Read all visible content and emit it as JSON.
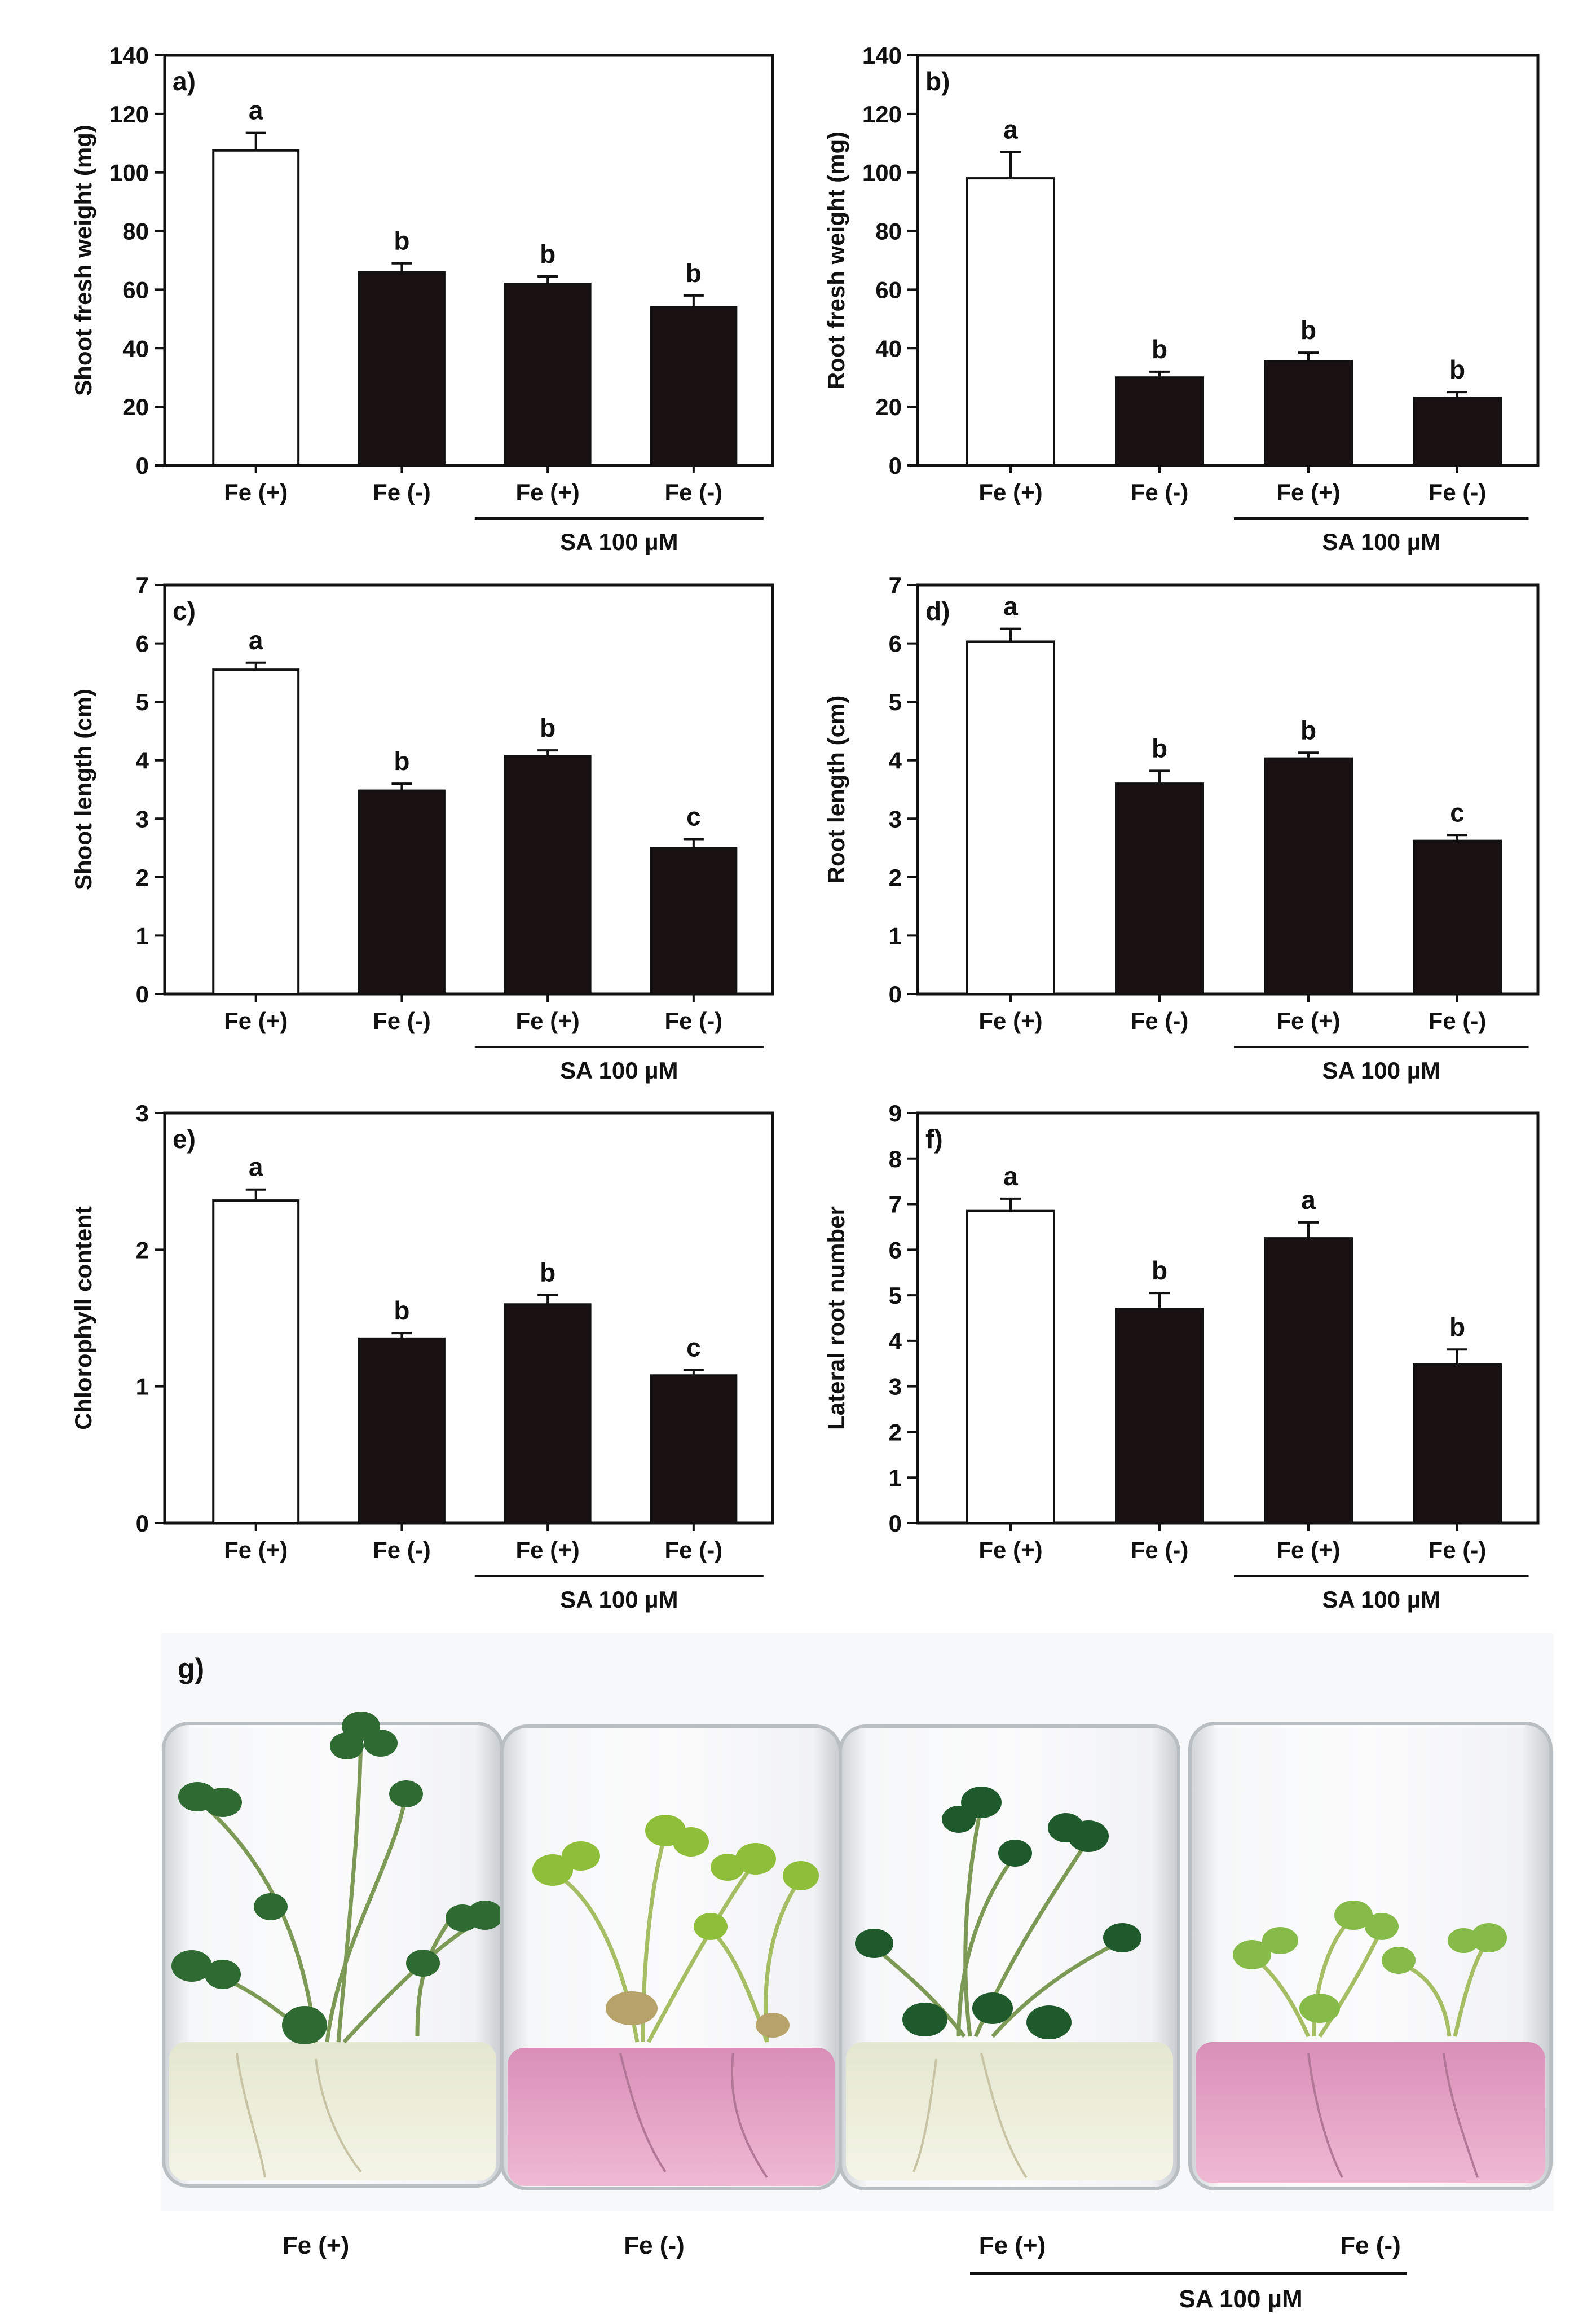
{
  "colors": {
    "control_fill": "#ffffff",
    "treatment_fill": "#1a1212",
    "axis": "#111111",
    "pink_medium": "#e6a3c4",
    "clear_medium": "#eef1da",
    "leaf_green": "#2f6a33"
  },
  "chart_data": [
    {
      "panel": "a)",
      "type": "bar",
      "ylabel": "Shoot fresh weight (mg)",
      "categories": [
        "Fe (+)",
        "Fe (-)",
        "Fe (+)",
        "Fe (-)"
      ],
      "values": [
        107.5,
        66,
        62,
        54
      ],
      "errors": [
        6,
        3,
        2.5,
        4
      ],
      "letters": [
        "a",
        "b",
        "b",
        "b"
      ],
      "ylim": [
        0,
        140
      ],
      "ytick_step": 20,
      "yticks": [
        "0",
        "20",
        "40",
        "60",
        "80",
        "100",
        "120",
        "140"
      ],
      "group_label": "SA 100 µM"
    },
    {
      "panel": "b)",
      "type": "bar",
      "ylabel": "Root fresh weight (mg)",
      "categories": [
        "Fe (+)",
        "Fe (-)",
        "Fe (+)",
        "Fe (-)"
      ],
      "values": [
        98,
        30,
        35.5,
        23
      ],
      "errors": [
        9,
        2,
        3,
        2
      ],
      "letters": [
        "a",
        "b",
        "b",
        "b"
      ],
      "ylim": [
        0,
        140
      ],
      "ytick_step": 20,
      "yticks": [
        "0",
        "20",
        "40",
        "60",
        "80",
        "100",
        "120",
        "140"
      ],
      "group_label": "SA 100 µM"
    },
    {
      "panel": "c)",
      "type": "bar",
      "ylabel": "Shoot length (cm)",
      "categories": [
        "Fe (+)",
        "Fe (-)",
        "Fe (+)",
        "Fe (-)"
      ],
      "values": [
        5.55,
        3.48,
        4.07,
        2.5
      ],
      "errors": [
        0.12,
        0.12,
        0.1,
        0.15
      ],
      "letters": [
        "a",
        "b",
        "b",
        "c"
      ],
      "ylim": [
        0,
        7
      ],
      "ytick_step": 1,
      "yticks": [
        "0",
        "1",
        "2",
        "3",
        "4",
        "5",
        "6",
        "7"
      ],
      "group_label": "SA 100 µM"
    },
    {
      "panel": "d)",
      "type": "bar",
      "ylabel": "Root length (cm)",
      "categories": [
        "Fe (+)",
        "Fe (-)",
        "Fe (+)",
        "Fe (-)"
      ],
      "values": [
        6.03,
        3.6,
        4.03,
        2.62
      ],
      "errors": [
        0.22,
        0.22,
        0.1,
        0.1
      ],
      "letters": [
        "a",
        "b",
        "b",
        "c"
      ],
      "ylim": [
        0,
        7
      ],
      "ytick_step": 1,
      "yticks": [
        "0",
        "1",
        "2",
        "3",
        "4",
        "5",
        "6",
        "7"
      ],
      "group_label": "SA 100 µM"
    },
    {
      "panel": "e)",
      "type": "bar",
      "ylabel": "Chlorophyll content",
      "categories": [
        "Fe (+)",
        "Fe (-)",
        "Fe (+)",
        "Fe (-)"
      ],
      "values": [
        2.36,
        1.35,
        1.6,
        1.08
      ],
      "errors": [
        0.08,
        0.04,
        0.07,
        0.04
      ],
      "letters": [
        "a",
        "b",
        "b",
        "c"
      ],
      "ylim": [
        0,
        3
      ],
      "ytick_step": 1,
      "yticks": [
        "0",
        "1",
        "2",
        "3"
      ],
      "group_label": "SA 100 µM"
    },
    {
      "panel": "f)",
      "type": "bar",
      "ylabel": "Lateral root number",
      "categories": [
        "Fe (+)",
        "Fe (-)",
        "Fe (+)",
        "Fe (-)"
      ],
      "values": [
        6.85,
        4.7,
        6.25,
        3.48
      ],
      "errors": [
        0.27,
        0.35,
        0.35,
        0.33
      ],
      "letters": [
        "a",
        "b",
        "a",
        "b"
      ],
      "ylim": [
        0,
        9
      ],
      "ytick_step": 1,
      "yticks": [
        "0",
        "1",
        "2",
        "3",
        "4",
        "5",
        "6",
        "7",
        "8",
        "9"
      ],
      "group_label": "SA 100 µM"
    }
  ],
  "photo": {
    "panel": "g)",
    "labels": [
      "Fe (+)",
      "Fe (-)",
      "Fe (+)",
      "Fe (-)"
    ],
    "group_label": "SA 100 µM"
  }
}
